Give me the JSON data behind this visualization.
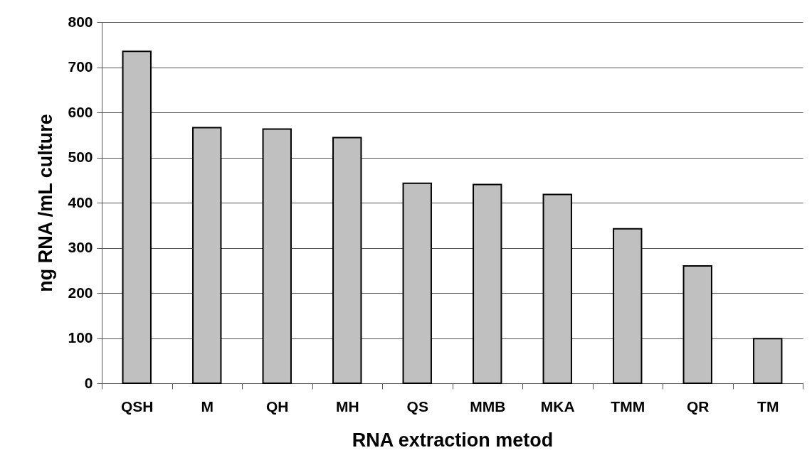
{
  "chart_data": {
    "type": "bar",
    "xlabel": "RNA extraction metod",
    "ylabel": "ng RNA /mL culture",
    "categories": [
      "QSH",
      "M",
      "QH",
      "MH",
      "QS",
      "MMB",
      "MKA",
      "TMM",
      "QR",
      "TM"
    ],
    "values": [
      735,
      566,
      563,
      544,
      443,
      440,
      418,
      342,
      260,
      99
    ],
    "color": "#c0c0c0",
    "ylim": [
      0,
      800
    ],
    "yticks": [
      0,
      100,
      200,
      300,
      400,
      500,
      600,
      700,
      800
    ],
    "grid": "y"
  }
}
